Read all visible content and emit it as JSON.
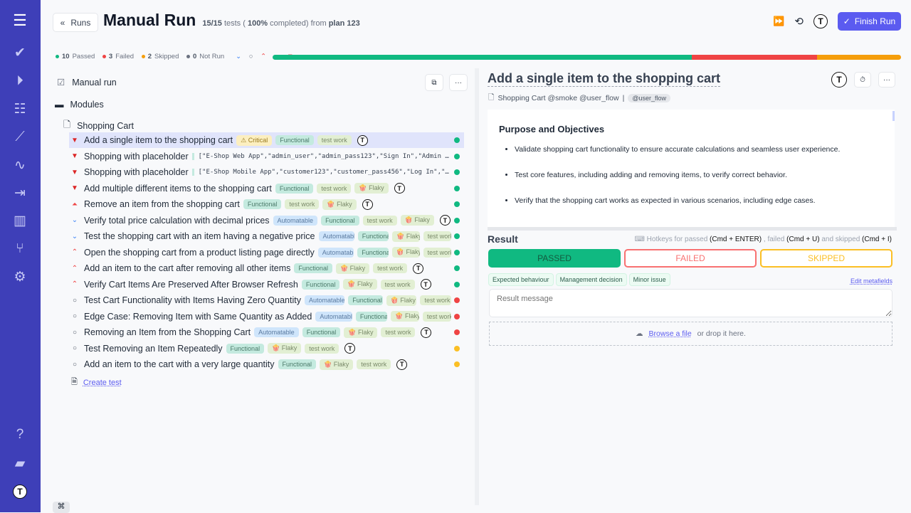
{
  "sidebar": {
    "icons": [
      "menu-icon",
      "check-icon",
      "play-icon",
      "list-check-icon",
      "steps-icon",
      "pulse-icon",
      "import-icon",
      "chart-icon",
      "branch-icon",
      "gear-icon",
      "help-icon",
      "folder-icon",
      "avatar"
    ]
  },
  "header": {
    "back_label": "Runs",
    "title": "Manual Run",
    "progress_count": "15/15",
    "tests_word": "tests (",
    "percent": "100%",
    "completed": "completed) from",
    "plan": "plan 123",
    "finish_label": "Finish Run"
  },
  "stats": {
    "passed": "10",
    "passed_label": "Passed",
    "failed": "3",
    "failed_label": "Failed",
    "skipped": "2",
    "skipped_label": "Skipped",
    "notrun": "0",
    "notrun_label": "Not Run"
  },
  "progress": {
    "passed": 10,
    "failed": 3,
    "skipped": 2,
    "total": 15,
    "colors": {
      "passed": "#10b981",
      "failed": "#ef4444",
      "skipped": "#f59e0b"
    }
  },
  "tree": {
    "run_label": "Manual run",
    "modules_label": "Modules",
    "suite_label": "Shopping Cart",
    "create_label": "Create test",
    "tests": [
      {
        "title": "Add a single item to the shopping cart",
        "priority": "critical",
        "tags": [
          [
            "crit",
            "⚠ Critical"
          ],
          [
            "func",
            "Functional"
          ],
          [
            "work",
            "test work"
          ]
        ],
        "avatar": true,
        "status": "passed",
        "selected": true
      },
      {
        "title": "Shopping with placeholder",
        "priority": "critical",
        "params": "[\"E-Shop Web App\",\"admin_user\",\"admin_pass123\",\"Sign In\",\"Admin Dashboard\"]",
        "tags": [],
        "status": "passed"
      },
      {
        "title": "Shopping with placeholder",
        "priority": "critical",
        "params": "[\"E-Shop Mobile App\",\"customer123\",\"customer_pass456\",\"Log In\",\"Welcome\"]",
        "tags": [],
        "status": "passed"
      },
      {
        "title": "Add multiple different items to the shopping cart",
        "priority": "critical",
        "tags": [
          [
            "func",
            "Functional"
          ],
          [
            "work",
            "test work"
          ],
          [
            "flaky",
            "🍿 Flaky"
          ]
        ],
        "avatar": true,
        "status": "passed"
      },
      {
        "title": "Remove an item from the shopping cart",
        "priority": "high",
        "tags": [
          [
            "func",
            "Functional"
          ],
          [
            "work",
            "test work"
          ],
          [
            "flaky",
            "🍿 Flaky"
          ]
        ],
        "avatar": true,
        "status": "passed"
      },
      {
        "title": "Verify total price calculation with decimal prices",
        "priority": "low",
        "tags": [
          [
            "auto",
            "Automatable"
          ],
          [
            "func",
            "Functional"
          ],
          [
            "work",
            "test work"
          ],
          [
            "flaky",
            "🍿 Flaky"
          ]
        ],
        "avatar": true,
        "status": "passed"
      },
      {
        "title": "Test the shopping cart with an item having a negative price",
        "priority": "low",
        "tags": [
          [
            "auto",
            "Automatable"
          ],
          [
            "func",
            "Functional"
          ],
          [
            "flaky",
            "🍿 Flaky"
          ],
          [
            "work",
            "test work"
          ]
        ],
        "status": "passed"
      },
      {
        "title": "Open the shopping cart from a product listing page directly",
        "priority": "medium",
        "tags": [
          [
            "auto",
            "Automatable"
          ],
          [
            "func",
            "Functional"
          ],
          [
            "flaky",
            "🍿 Flaky"
          ],
          [
            "work",
            "test work"
          ]
        ],
        "status": "passed"
      },
      {
        "title": "Add an item to the cart after removing all other items",
        "priority": "medium",
        "tags": [
          [
            "func",
            "Functional"
          ],
          [
            "flaky",
            "🍿 Flaky"
          ],
          [
            "work",
            "test work"
          ]
        ],
        "avatar": true,
        "status": "passed"
      },
      {
        "title": "Verify Cart Items Are Preserved After Browser Refresh",
        "priority": "medium",
        "tags": [
          [
            "func",
            "Functional"
          ],
          [
            "flaky",
            "🍿 Flaky"
          ],
          [
            "work",
            "test work"
          ]
        ],
        "avatar": true,
        "status": "passed"
      },
      {
        "title": "Test Cart Functionality with Items Having Zero Quantity",
        "priority": "normal",
        "tags": [
          [
            "auto",
            "Automatable"
          ],
          [
            "func",
            "Functional"
          ],
          [
            "flaky",
            "🍿 Flaky"
          ],
          [
            "work",
            "test work"
          ]
        ],
        "status": "failed"
      },
      {
        "title": "Edge Case: Removing Item with Same Quantity as Added",
        "priority": "normal",
        "tags": [
          [
            "auto",
            "Automatable"
          ],
          [
            "func",
            "Functional"
          ],
          [
            "flaky",
            "🍿 Flaky"
          ],
          [
            "work",
            "test work"
          ]
        ],
        "status": "failed"
      },
      {
        "title": "Removing an Item from the Shopping Cart",
        "priority": "normal",
        "tags": [
          [
            "auto",
            "Automatable"
          ],
          [
            "func",
            "Functional"
          ],
          [
            "flaky",
            "🍿 Flaky"
          ],
          [
            "work",
            "test work"
          ]
        ],
        "avatar": true,
        "status": "failed"
      },
      {
        "title": "Test Removing an Item Repeatedly",
        "priority": "normal",
        "tags": [
          [
            "func",
            "Functional"
          ],
          [
            "flaky",
            "🍿 Flaky"
          ],
          [
            "work",
            "test work"
          ]
        ],
        "avatar": true,
        "status": "skipped"
      },
      {
        "title": "Add an item to the cart with a very large quantity",
        "priority": "normal",
        "tags": [
          [
            "func",
            "Functional"
          ],
          [
            "flaky",
            "🍿 Flaky"
          ],
          [
            "work",
            "test work"
          ]
        ],
        "avatar": true,
        "status": "skipped"
      }
    ]
  },
  "detail": {
    "title": "Add a single item to the shopping cart",
    "suite": "Shopping Cart @smoke @user_flow",
    "tag": "@user_flow",
    "heading": "Purpose and Objectives",
    "bullets": [
      "Validate shopping cart functionality to ensure accurate calculations and seamless user experience.",
      "Test core features, including adding and removing items, to verify correct behavior.",
      "Verify that the shopping cart works as expected in various scenarios, including edge cases."
    ]
  },
  "result": {
    "label": "Result",
    "hk1": "Hotkeys for passed",
    "k1": "(Cmd + ENTER)",
    "hk2": ", failed",
    "k2": "(Cmd + U)",
    "hk3": "and skipped",
    "k3": "(Cmd + I)",
    "passed": "PASSED",
    "failed": "FAILED",
    "skipped": "SKIPPED",
    "chips": [
      "Expected behaviour",
      "Management decision",
      "Minor issue"
    ],
    "edit": "Edit metafields",
    "placeholder": "Result message",
    "browse": "Browse a file",
    "drop": "or drop it here."
  }
}
